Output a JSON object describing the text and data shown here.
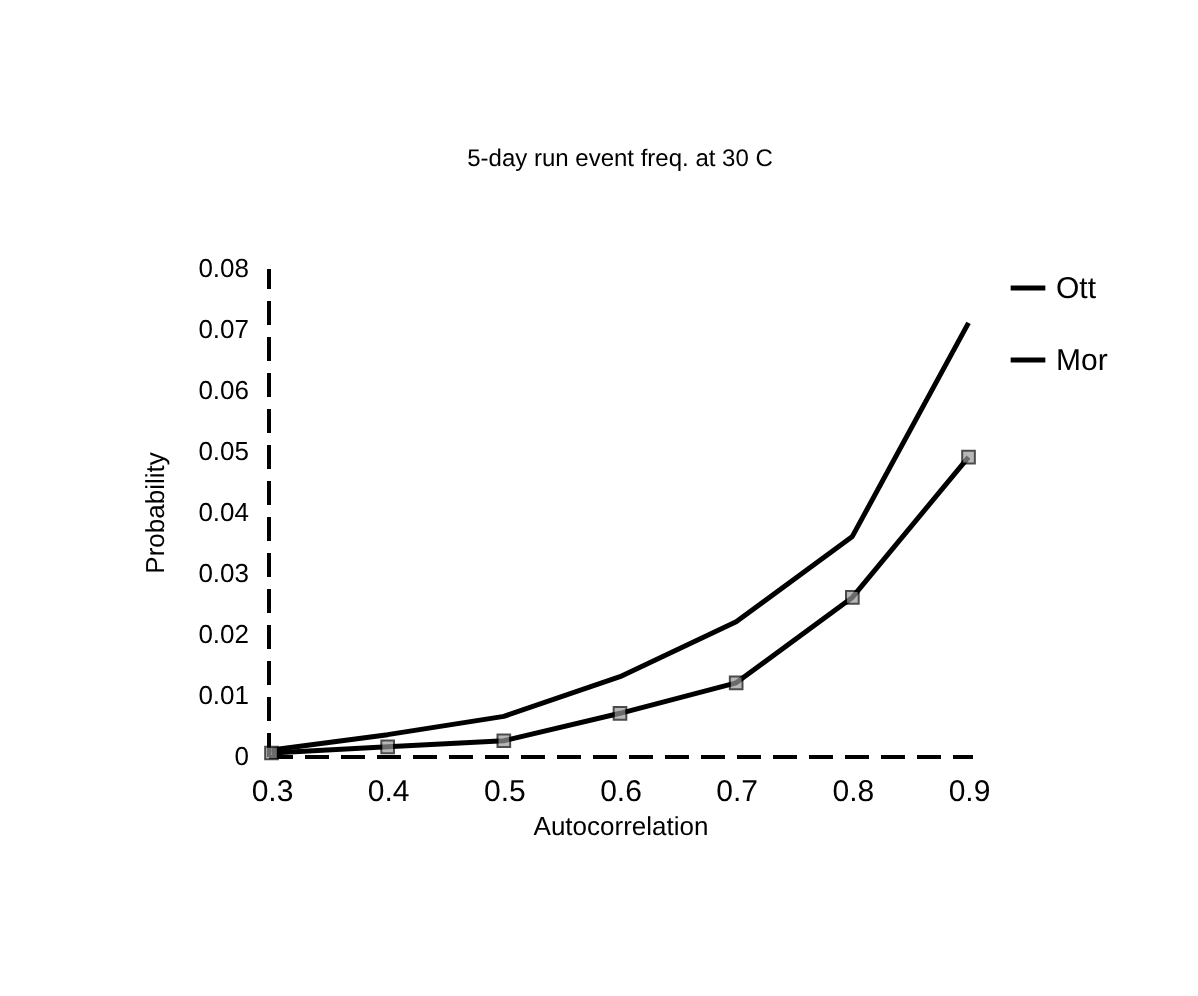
{
  "chart_data": {
    "type": "line",
    "title": "5-day run event freq. at 30 C",
    "xlabel": "Autocorrelation",
    "ylabel": "Probability",
    "categories": [
      "0.3",
      "0.4",
      "0.5",
      "0.6",
      "0.7",
      "0.8",
      "0.9"
    ],
    "series": [
      {
        "name": "Ott",
        "color": "#000000",
        "marker": "square",
        "values": [
          0.0005,
          0.0015,
          0.0025,
          0.007,
          0.012,
          0.026,
          0.049
        ]
      },
      {
        "name": "Mor",
        "color": "#000000",
        "marker": "none",
        "values": [
          0.001,
          0.0035,
          0.0065,
          0.013,
          0.022,
          0.036,
          0.071
        ]
      }
    ],
    "ylim": [
      0,
      0.08
    ],
    "yticks": [
      0,
      0.01,
      0.02,
      0.03,
      0.04,
      0.05,
      0.06,
      0.07,
      0.08
    ],
    "grid": false,
    "legend": "right",
    "line_style": "solid"
  }
}
